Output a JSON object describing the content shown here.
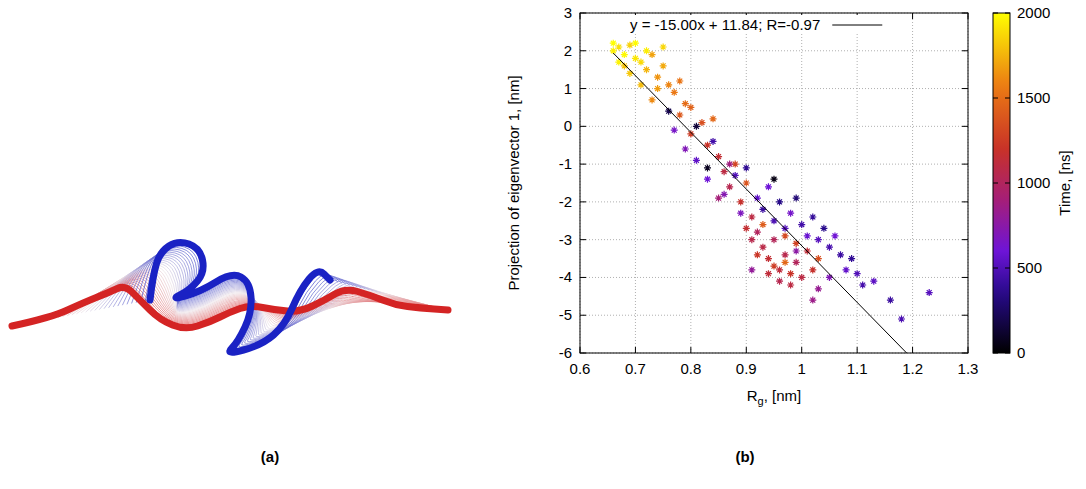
{
  "figure": {
    "panels": [
      {
        "label": "(a)"
      },
      {
        "label": "(b)"
      }
    ]
  },
  "chart_data": {
    "type": "scatter",
    "marker": "asterisk",
    "grid": true,
    "xlabel": "Rg, [nm]",
    "ylabel": "Projection of eigenvector 1, [nm]",
    "xlim": [
      0.6,
      1.3
    ],
    "xticks": [
      0.6,
      0.7,
      0.8,
      0.9,
      1,
      1.1,
      1.2,
      1.3
    ],
    "ylim": [
      -6,
      3
    ],
    "yticks": [
      -6,
      -5,
      -4,
      -3,
      -2,
      -1,
      0,
      1,
      2,
      3
    ],
    "x": [
      0.66,
      0.67,
      0.68,
      0.69,
      0.7,
      0.68,
      0.71,
      0.72,
      0.7,
      0.73,
      0.74,
      0.75,
      0.69,
      0.72,
      0.76,
      0.77,
      0.74,
      0.78,
      0.71,
      0.67,
      0.73,
      0.75,
      0.66,
      0.79,
      0.8,
      0.78,
      0.82,
      0.8,
      0.83,
      0.85,
      0.84,
      0.86,
      0.88,
      0.87,
      0.89,
      0.9,
      0.91,
      0.92,
      0.93,
      0.94,
      0.95,
      0.96,
      0.97,
      0.98,
      0.99,
      1.0,
      1.01,
      0.95,
      0.97,
      0.93,
      1.02,
      0.96,
      0.99,
      0.94,
      0.92,
      1.03,
      0.98,
      0.91,
      0.9,
      0.97,
      0.77,
      0.79,
      0.81,
      0.83,
      0.84,
      0.86,
      0.88,
      0.89,
      0.9,
      0.92,
      0.93,
      0.94,
      0.95,
      0.96,
      0.97,
      0.98,
      0.99,
      1.0,
      1.01,
      1.02,
      1.03,
      1.04,
      1.05,
      1.06,
      1.07,
      1.08,
      1.09,
      1.1,
      1.11,
      1.13,
      1.16,
      1.18,
      1.23,
      1.05,
      1.03,
      1.02,
      0.99,
      0.91,
      0.87,
      0.85,
      0.81,
      0.76,
      0.83,
      0.95
    ],
    "values": [
      2.0,
      2.1,
      1.9,
      2.15,
      1.8,
      1.6,
      1.7,
      1.5,
      2.2,
      1.9,
      1.3,
      1.6,
      1.4,
      2.0,
      1.1,
      0.9,
      1.0,
      1.2,
      1.1,
      1.7,
      0.7,
      2.1,
      2.2,
      0.6,
      0.5,
      0.3,
      0.1,
      -0.2,
      -0.5,
      -0.8,
      0.2,
      -1.2,
      -1.0,
      -1.6,
      -2.0,
      -1.5,
      -2.4,
      -2.8,
      -3.2,
      -3.5,
      -3.0,
      -3.8,
      -3.4,
      -3.9,
      -3.6,
      -4.0,
      -3.3,
      -3.7,
      -2.9,
      -2.6,
      -3.8,
      -4.1,
      -3.1,
      -3.9,
      -3.4,
      -3.5,
      -4.2,
      -3.0,
      -2.7,
      -3.6,
      -0.1,
      -0.6,
      -0.9,
      -1.4,
      -0.4,
      -1.8,
      -1.3,
      -2.3,
      -1.1,
      -1.9,
      -2.2,
      -1.6,
      -2.5,
      -2.0,
      -2.7,
      -2.3,
      -1.9,
      -2.6,
      -2.9,
      -2.4,
      -3.0,
      -2.7,
      -3.2,
      -2.9,
      -3.4,
      -3.8,
      -3.5,
      -3.9,
      -4.2,
      -4.1,
      -4.6,
      -5.1,
      -4.4,
      -4.0,
      -4.3,
      -4.6,
      -3.3,
      -3.8,
      -1.0,
      -1.9,
      0.0,
      0.4,
      -1.1,
      -1.4
    ],
    "time": [
      1950,
      1900,
      1980,
      1850,
      1920,
      1800,
      1880,
      1760,
      1990,
      1700,
      1650,
      1720,
      1820,
      1940,
      1600,
      1560,
      1680,
      1540,
      1780,
      1960,
      1620,
      1870,
      2000,
      1500,
      1450,
      1400,
      1350,
      1250,
      1200,
      1150,
      1480,
      1100,
      1300,
      1050,
      1180,
      1380,
      1100,
      1000,
      1080,
      1150,
      1020,
      1120,
      1060,
      1200,
      1010,
      1090,
      1140,
      1250,
      1320,
      1420,
      1180,
      1050,
      1280,
      1130,
      1220,
      1350,
      1100,
      1060,
      1160,
      1480,
      650,
      700,
      550,
      600,
      450,
      720,
      500,
      680,
      380,
      560,
      420,
      600,
      480,
      350,
      520,
      640,
      300,
      450,
      580,
      400,
      520,
      360,
      470,
      610,
      430,
      560,
      390,
      500,
      460,
      540,
      420,
      480,
      520,
      700,
      820,
      850,
      760,
      800,
      880,
      900,
      150,
      200,
      80,
      50
    ],
    "clabel": "Time, [ns]",
    "clim": [
      0,
      2000
    ],
    "cticks": [
      0,
      500,
      1000,
      1500,
      2000
    ],
    "fit": {
      "label": "y = -15.00x + 11.84; R=-0.97",
      "slope": -15.0,
      "intercept": 11.84,
      "x": [
        0.66,
        1.19
      ]
    }
  }
}
